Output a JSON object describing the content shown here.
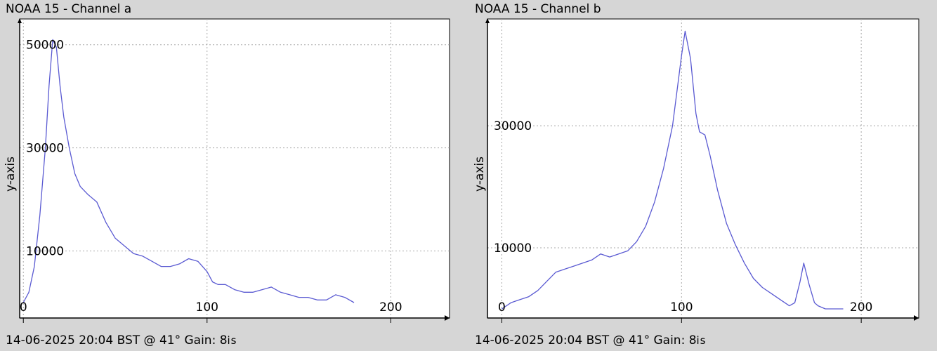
{
  "chart_data": [
    {
      "type": "line",
      "title": "NOAA 15 - Channel a",
      "footer": "14-06-2025 20:04 BST @ 41° Gain: 8",
      "footer_suffix": "is",
      "ylabel": "y-axis",
      "xlabel": "",
      "xlim": [
        -2,
        232
      ],
      "ylim": [
        -3000,
        55000
      ],
      "xticks": [
        0,
        100,
        200
      ],
      "yticks": [
        10000,
        30000,
        50000
      ],
      "grid": true,
      "color": "#5a5ad2",
      "series": [
        {
          "x": [
            0,
            3,
            6,
            9,
            12,
            14,
            16,
            18,
            20,
            22,
            25,
            28,
            31,
            35,
            40,
            45,
            50,
            55,
            60,
            65,
            70,
            75,
            80,
            85,
            90,
            95,
            100,
            103,
            106,
            110,
            115,
            120,
            125,
            130,
            135,
            140,
            145,
            150,
            155,
            160,
            165,
            170,
            175,
            180
          ],
          "y": [
            0,
            2000,
            7000,
            17000,
            30000,
            42000,
            51000,
            49500,
            42000,
            36000,
            30000,
            25000,
            22500,
            21000,
            19500,
            15500,
            12500,
            11000,
            9500,
            9000,
            8000,
            7000,
            7000,
            7500,
            8500,
            8000,
            6000,
            4000,
            3500,
            3500,
            2500,
            2000,
            2000,
            2500,
            3000,
            2000,
            1500,
            1000,
            1000,
            500,
            500,
            1500,
            1000,
            0
          ]
        }
      ]
    },
    {
      "type": "line",
      "title": "NOAA 15 - Channel b",
      "footer": "14-06-2025 20:04 BST @ 41° Gain: 8",
      "footer_suffix": "is",
      "ylabel": "y-axis",
      "xlabel": "",
      "xlim": [
        -8,
        232
      ],
      "ylim": [
        -1500,
        47500
      ],
      "xticks": [
        0,
        100,
        200
      ],
      "yticks": [
        10000,
        30000
      ],
      "grid": true,
      "color": "#5a5ad2",
      "series": [
        {
          "x": [
            0,
            5,
            10,
            15,
            20,
            25,
            30,
            35,
            40,
            45,
            50,
            55,
            60,
            65,
            70,
            75,
            80,
            85,
            90,
            95,
            100,
            102,
            105,
            108,
            110,
            113,
            116,
            120,
            125,
            130,
            135,
            140,
            145,
            150,
            155,
            160,
            163,
            166,
            168,
            171,
            174,
            176,
            180,
            185,
            190
          ],
          "y": [
            0,
            1000,
            1500,
            2000,
            3000,
            4500,
            6000,
            6500,
            7000,
            7500,
            8000,
            9000,
            8500,
            9000,
            9500,
            11000,
            13500,
            17500,
            23000,
            30000,
            41500,
            45500,
            41000,
            32000,
            29000,
            28500,
            25000,
            19500,
            14000,
            10500,
            7500,
            5000,
            3500,
            2500,
            1500,
            500,
            1000,
            4500,
            7500,
            4000,
            1000,
            500,
            0,
            0,
            0
          ]
        }
      ]
    }
  ]
}
